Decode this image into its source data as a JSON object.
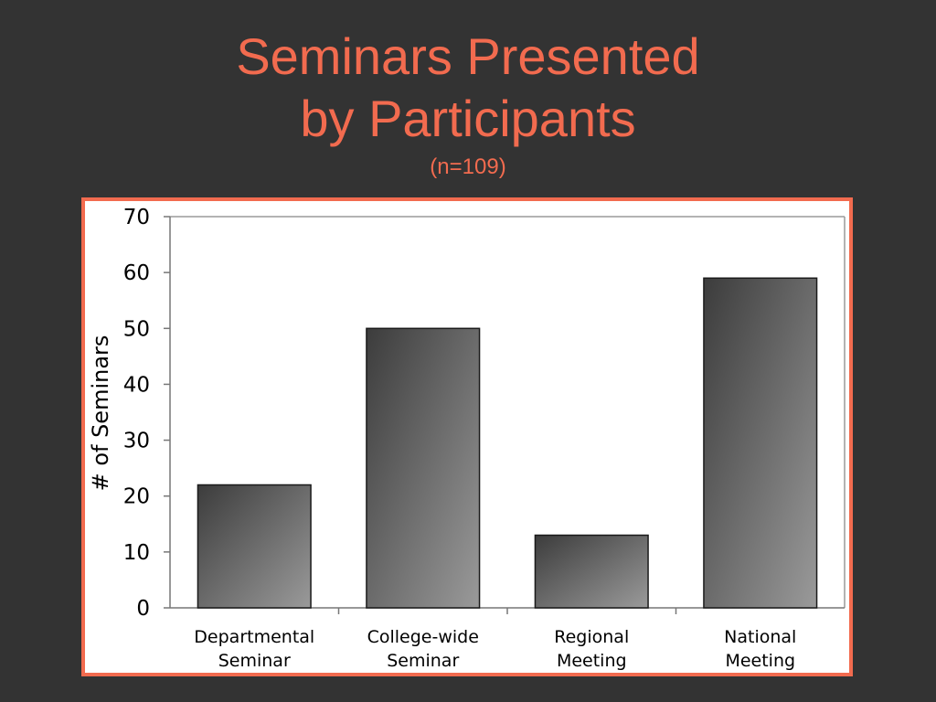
{
  "slide": {
    "title_line1": "Seminars Presented",
    "title_line2": "by Participants",
    "subtitle": "(n=109)"
  },
  "colors": {
    "background": "#333333",
    "accent": "#f26b4f",
    "bar_dark": "#3c3c3c",
    "bar_light": "#9a9a9a"
  },
  "chart_data": {
    "type": "bar",
    "categories": [
      [
        "Departmental",
        "Seminar"
      ],
      [
        "College-wide",
        "Seminar"
      ],
      [
        "Regional",
        "Meeting"
      ],
      [
        "National",
        "Meeting"
      ]
    ],
    "values": [
      22,
      50,
      13,
      59
    ],
    "ylabel": "# of Seminars",
    "ylim": [
      0,
      70
    ],
    "yticks": [
      0,
      10,
      20,
      30,
      40,
      50,
      60,
      70
    ],
    "grid": false,
    "legend": "none"
  }
}
